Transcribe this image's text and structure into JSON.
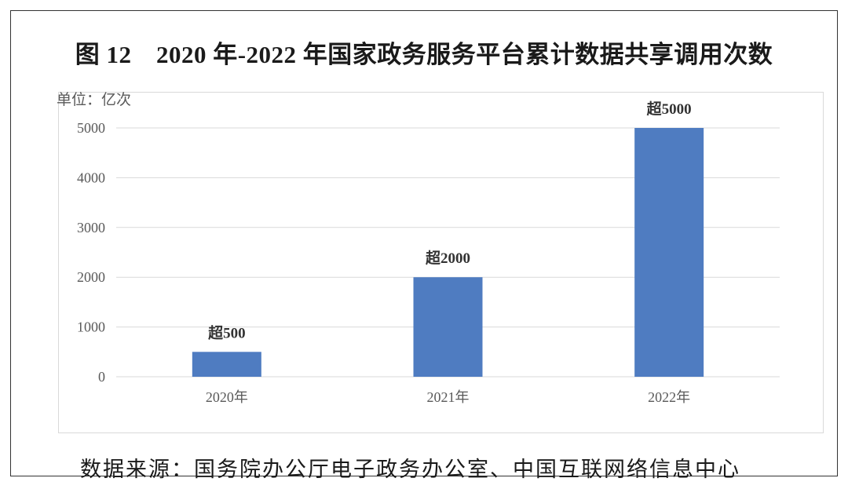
{
  "figure_title": "图 12　2020 年-2022 年国家政务服务平台累计数据共享调用次数",
  "source_note": "数据来源：国务院办公厅电子政务办公室、中国互联网络信息中心",
  "colors": {
    "bar": "#4f7cc1",
    "grid": "#d9d9d9",
    "axis_text": "#595959",
    "label_text": "#333333"
  },
  "chart_data": {
    "type": "bar",
    "title": "",
    "unit_label": "单位：亿次",
    "categories": [
      "2020年",
      "2021年",
      "2022年"
    ],
    "values": [
      500,
      2000,
      5000
    ],
    "data_labels": [
      "超500",
      "超2000",
      "超5000"
    ],
    "yticks": [
      "0",
      "1000",
      "2000",
      "3000",
      "4000",
      "5000"
    ],
    "ylim": [
      0,
      5000
    ],
    "grid": true,
    "legend": "none"
  }
}
